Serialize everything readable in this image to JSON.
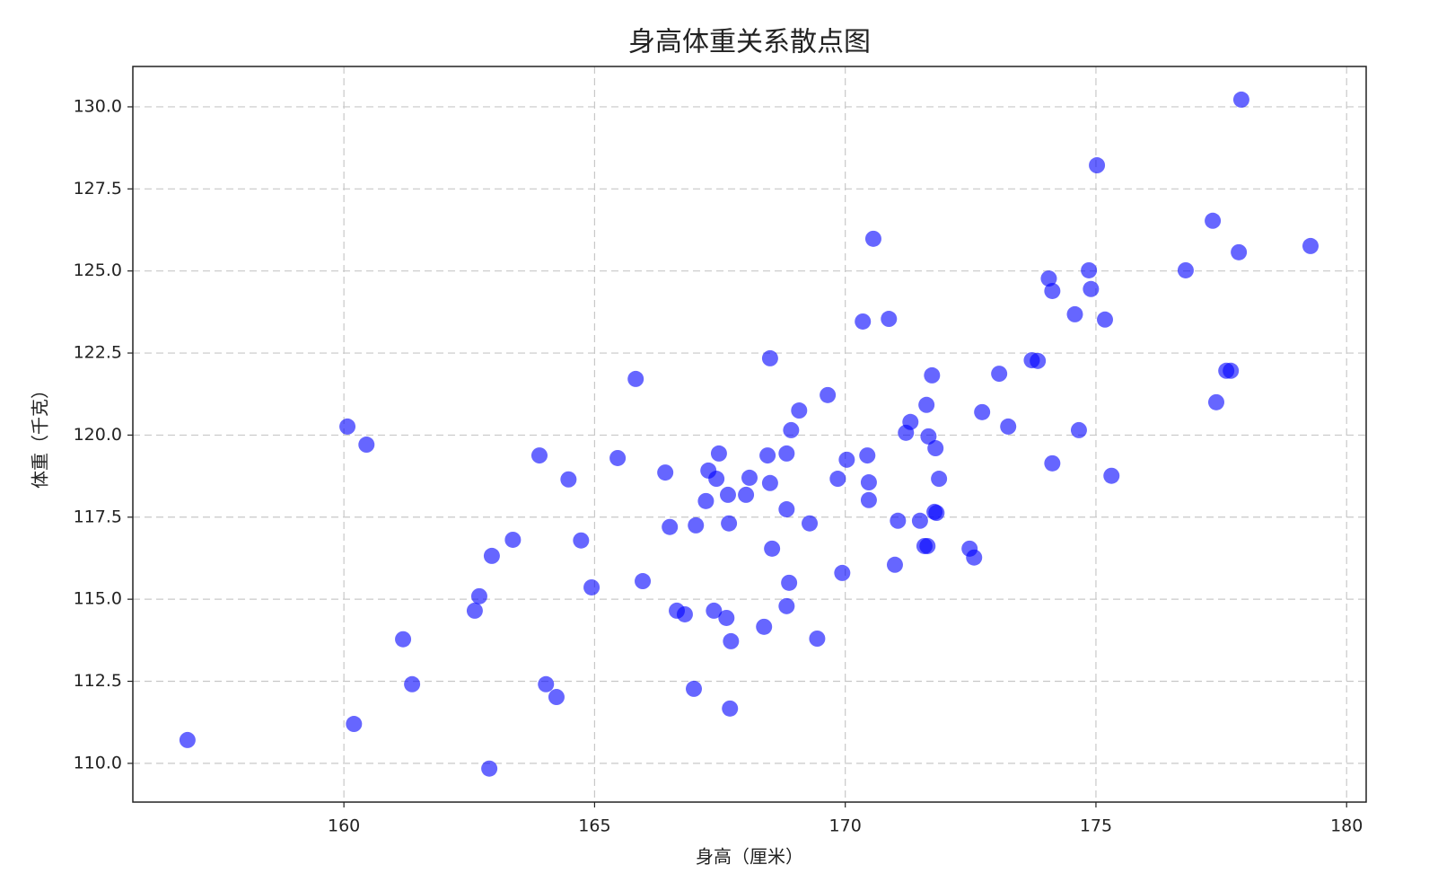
{
  "chart_data": {
    "type": "scatter",
    "title": "身高体重关系散点图",
    "xlabel": "身高（厘米）",
    "ylabel": "体重（千克）",
    "xlim": [
      155.79,
      180.39
    ],
    "ylim": [
      108.82,
      131.23
    ],
    "xticks": [
      160,
      165,
      170,
      175,
      180
    ],
    "yticks": [
      {
        "value": 110,
        "label": "110.0"
      },
      {
        "value": 112.5,
        "label": "112.5"
      },
      {
        "value": 115,
        "label": "115.0"
      },
      {
        "value": 117.5,
        "label": "117.5"
      },
      {
        "value": 120,
        "label": "120.0"
      },
      {
        "value": 122.5,
        "label": "122.5"
      },
      {
        "value": 125,
        "label": "125.0"
      },
      {
        "value": 127.5,
        "label": "127.5"
      },
      {
        "value": 130,
        "label": "130.0"
      }
    ],
    "grid": true,
    "color": "#0000ff",
    "x": [
      156.88,
      160.07,
      160.45,
      160.2,
      161.18,
      161.36,
      162.9,
      162.61,
      162.7,
      162.95,
      163.37,
      163.9,
      164.03,
      164.24,
      164.48,
      164.73,
      164.94,
      165.46,
      165.82,
      165.96,
      166.41,
      166.5,
      166.64,
      166.8,
      166.98,
      167.02,
      167.22,
      167.27,
      167.38,
      167.43,
      167.48,
      167.63,
      167.66,
      167.68,
      167.7,
      167.72,
      168.02,
      168.09,
      168.38,
      168.45,
      168.5,
      168.5,
      168.54,
      168.83,
      168.83,
      168.83,
      168.88,
      168.92,
      169.08,
      169.29,
      169.44,
      169.65,
      169.85,
      169.94,
      170.03,
      170.35,
      170.44,
      170.47,
      170.47,
      170.56,
      170.87,
      170.99,
      171.05,
      171.21,
      171.3,
      171.49,
      171.58,
      171.64,
      171.62,
      171.66,
      171.73,
      171.78,
      171.82,
      171.8,
      171.87,
      172.48,
      172.57,
      172.73,
      173.07,
      173.25,
      173.72,
      173.84,
      174.06,
      174.13,
      174.13,
      174.58,
      174.66,
      174.86,
      174.9,
      175.02,
      175.18,
      175.31,
      176.79,
      177.33,
      177.4,
      177.6,
      177.69,
      177.85,
      177.9,
      179.28
    ],
    "values": [
      110.71,
      120.26,
      119.71,
      111.2,
      113.78,
      112.41,
      109.84,
      114.65,
      115.09,
      116.32,
      116.81,
      119.38,
      112.41,
      112.02,
      118.65,
      116.79,
      115.36,
      119.3,
      121.71,
      115.55,
      118.86,
      117.2,
      114.65,
      114.54,
      112.27,
      117.25,
      117.99,
      118.92,
      114.65,
      118.67,
      119.44,
      114.43,
      118.18,
      117.31,
      111.67,
      113.72,
      118.18,
      118.7,
      114.16,
      119.38,
      118.54,
      122.34,
      116.54,
      114.79,
      119.44,
      117.74,
      115.5,
      120.15,
      120.75,
      117.31,
      113.8,
      121.22,
      118.67,
      115.8,
      119.25,
      123.46,
      119.38,
      118.56,
      118.02,
      125.98,
      123.54,
      116.05,
      117.39,
      120.07,
      120.4,
      117.39,
      116.62,
      116.62,
      120.92,
      119.96,
      121.82,
      117.66,
      117.63,
      119.6,
      118.67,
      116.54,
      116.27,
      120.7,
      121.87,
      120.26,
      122.28,
      122.26,
      124.77,
      124.39,
      119.14,
      123.68,
      120.15,
      125.02,
      124.45,
      128.22,
      123.52,
      118.76,
      125.02,
      126.53,
      121.0,
      121.96,
      121.96,
      125.57,
      130.22,
      125.76
    ]
  }
}
